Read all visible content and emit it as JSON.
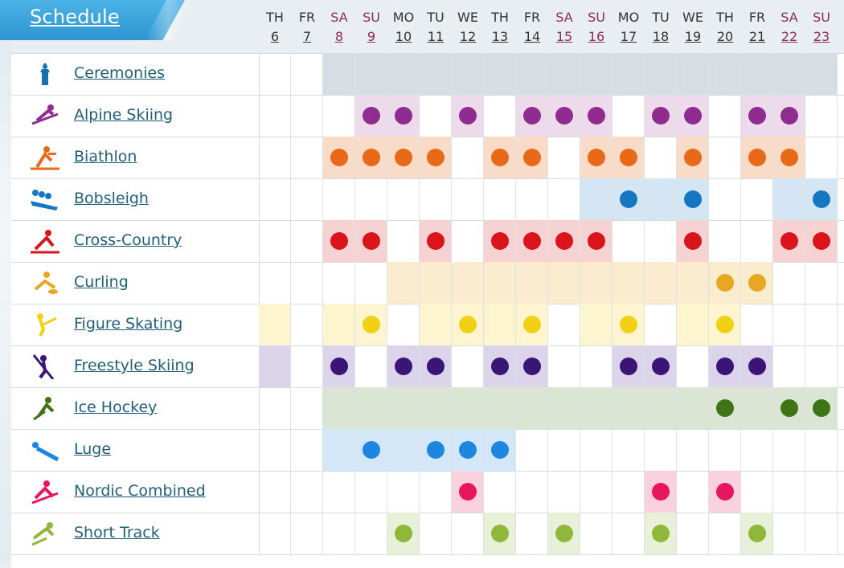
{
  "header": {
    "title": "Schedule"
  },
  "days": [
    {
      "dow": "TH",
      "num": "6",
      "weekend": false
    },
    {
      "dow": "FR",
      "num": "7",
      "weekend": false
    },
    {
      "dow": "SA",
      "num": "8",
      "weekend": true
    },
    {
      "dow": "SU",
      "num": "9",
      "weekend": true
    },
    {
      "dow": "MO",
      "num": "10",
      "weekend": false
    },
    {
      "dow": "TU",
      "num": "11",
      "weekend": false
    },
    {
      "dow": "WE",
      "num": "12",
      "weekend": false
    },
    {
      "dow": "TH",
      "num": "13",
      "weekend": false
    },
    {
      "dow": "FR",
      "num": "14",
      "weekend": false
    },
    {
      "dow": "SA",
      "num": "15",
      "weekend": true
    },
    {
      "dow": "SU",
      "num": "16",
      "weekend": true
    },
    {
      "dow": "MO",
      "num": "17",
      "weekend": false
    },
    {
      "dow": "TU",
      "num": "18",
      "weekend": false
    },
    {
      "dow": "WE",
      "num": "19",
      "weekend": false
    },
    {
      "dow": "TH",
      "num": "20",
      "weekend": false
    },
    {
      "dow": "FR",
      "num": "21",
      "weekend": false
    },
    {
      "dow": "SA",
      "num": "22",
      "weekend": true
    },
    {
      "dow": "SU",
      "num": "23",
      "weekend": true
    }
  ],
  "sports": [
    {
      "name": "Ceremonies",
      "icon": "torch-icon",
      "color": "#1a6fb3",
      "tint": "#d6dde3",
      "active": [
        0,
        0,
        1,
        1,
        1,
        1,
        1,
        1,
        1,
        1,
        1,
        1,
        1,
        1,
        1,
        1,
        1,
        1
      ],
      "medals": [
        0,
        0,
        0,
        0,
        0,
        0,
        0,
        0,
        0,
        0,
        0,
        0,
        0,
        0,
        0,
        0,
        0,
        0
      ]
    },
    {
      "name": "Alpine Skiing",
      "icon": "alpine-skiing-icon",
      "color": "#8e2c8f",
      "tint": "#eddbec",
      "active": [
        0,
        0,
        0,
        1,
        1,
        0,
        1,
        0,
        1,
        1,
        1,
        0,
        1,
        1,
        0,
        1,
        1,
        0
      ],
      "medals": [
        0,
        0,
        0,
        1,
        1,
        0,
        1,
        0,
        1,
        1,
        1,
        0,
        1,
        1,
        0,
        1,
        1,
        0
      ]
    },
    {
      "name": "Biathlon",
      "icon": "biathlon-icon",
      "color": "#e86a18",
      "tint": "#f9dcc8",
      "active": [
        0,
        0,
        1,
        1,
        1,
        1,
        0,
        1,
        1,
        0,
        1,
        1,
        0,
        1,
        0,
        1,
        1,
        0
      ],
      "medals": [
        0,
        0,
        1,
        1,
        1,
        1,
        0,
        1,
        1,
        0,
        1,
        1,
        0,
        1,
        0,
        1,
        1,
        0
      ]
    },
    {
      "name": "Bobsleigh",
      "icon": "bobsleigh-icon",
      "color": "#1577c2",
      "tint": "#d4e6f4",
      "active": [
        0,
        0,
        0,
        0,
        0,
        0,
        0,
        0,
        0,
        0,
        1,
        1,
        1,
        1,
        0,
        0,
        1,
        1
      ],
      "medals": [
        0,
        0,
        0,
        0,
        0,
        0,
        0,
        0,
        0,
        0,
        0,
        1,
        0,
        1,
        0,
        0,
        0,
        1
      ]
    },
    {
      "name": "Cross-Country",
      "icon": "cross-country-icon",
      "color": "#d9141b",
      "tint": "#f7d2d3",
      "active": [
        0,
        0,
        1,
        1,
        0,
        1,
        0,
        1,
        1,
        1,
        1,
        0,
        0,
        1,
        0,
        0,
        1,
        1
      ],
      "medals": [
        0,
        0,
        1,
        1,
        0,
        1,
        0,
        1,
        1,
        1,
        1,
        0,
        0,
        1,
        0,
        0,
        1,
        1
      ]
    },
    {
      "name": "Curling",
      "icon": "curling-icon",
      "color": "#e8a720",
      "tint": "#fbecd0",
      "active": [
        0,
        0,
        0,
        0,
        1,
        1,
        1,
        1,
        1,
        1,
        1,
        1,
        1,
        1,
        1,
        1,
        0,
        0
      ],
      "medals": [
        0,
        0,
        0,
        0,
        0,
        0,
        0,
        0,
        0,
        0,
        0,
        0,
        0,
        0,
        1,
        1,
        0,
        0
      ]
    },
    {
      "name": "Figure Skating",
      "icon": "figure-skating-icon",
      "color": "#f2d016",
      "tint": "#fdf5cf",
      "active": [
        1,
        0,
        1,
        1,
        0,
        1,
        1,
        1,
        1,
        0,
        1,
        1,
        0,
        1,
        1,
        0,
        0,
        0
      ],
      "medals": [
        0,
        0,
        0,
        1,
        0,
        0,
        1,
        0,
        1,
        0,
        0,
        1,
        0,
        0,
        1,
        0,
        0,
        0
      ]
    },
    {
      "name": "Freestyle Skiing",
      "icon": "freestyle-skiing-icon",
      "color": "#3b1576",
      "tint": "#dbd4ea",
      "active": [
        1,
        0,
        1,
        0,
        1,
        1,
        0,
        1,
        1,
        0,
        0,
        1,
        1,
        0,
        1,
        1,
        0,
        0
      ],
      "medals": [
        0,
        0,
        1,
        0,
        1,
        1,
        0,
        1,
        1,
        0,
        0,
        1,
        1,
        0,
        1,
        1,
        0,
        0
      ]
    },
    {
      "name": "Ice Hockey",
      "icon": "ice-hockey-icon",
      "color": "#3e7316",
      "tint": "#dae6d3",
      "active": [
        0,
        0,
        1,
        1,
        1,
        1,
        1,
        1,
        1,
        1,
        1,
        1,
        1,
        1,
        1,
        1,
        1,
        1
      ],
      "medals": [
        0,
        0,
        0,
        0,
        0,
        0,
        0,
        0,
        0,
        0,
        0,
        0,
        0,
        0,
        1,
        0,
        1,
        1
      ]
    },
    {
      "name": "Luge",
      "icon": "luge-icon",
      "color": "#1c86e0",
      "tint": "#d4e7f8",
      "active": [
        0,
        0,
        1,
        1,
        1,
        1,
        1,
        1,
        0,
        0,
        0,
        0,
        0,
        0,
        0,
        0,
        0,
        0
      ],
      "medals": [
        0,
        0,
        0,
        1,
        0,
        1,
        1,
        1,
        0,
        0,
        0,
        0,
        0,
        0,
        0,
        0,
        0,
        0
      ]
    },
    {
      "name": "Nordic Combined",
      "icon": "nordic-combined-icon",
      "color": "#e8165e",
      "tint": "#f9d2de",
      "active": [
        0,
        0,
        0,
        0,
        0,
        0,
        1,
        0,
        0,
        0,
        0,
        0,
        1,
        0,
        1,
        0,
        0,
        0
      ],
      "medals": [
        0,
        0,
        0,
        0,
        0,
        0,
        1,
        0,
        0,
        0,
        0,
        0,
        1,
        0,
        1,
        0,
        0,
        0
      ]
    },
    {
      "name": "Short Track",
      "icon": "short-track-icon",
      "color": "#8fb83a",
      "tint": "#e8f0d8",
      "active": [
        0,
        0,
        0,
        0,
        1,
        0,
        0,
        1,
        0,
        1,
        0,
        0,
        1,
        0,
        0,
        1,
        0,
        0
      ],
      "medals": [
        0,
        0,
        0,
        0,
        1,
        0,
        0,
        1,
        0,
        1,
        0,
        0,
        1,
        0,
        0,
        1,
        0,
        0
      ]
    }
  ]
}
